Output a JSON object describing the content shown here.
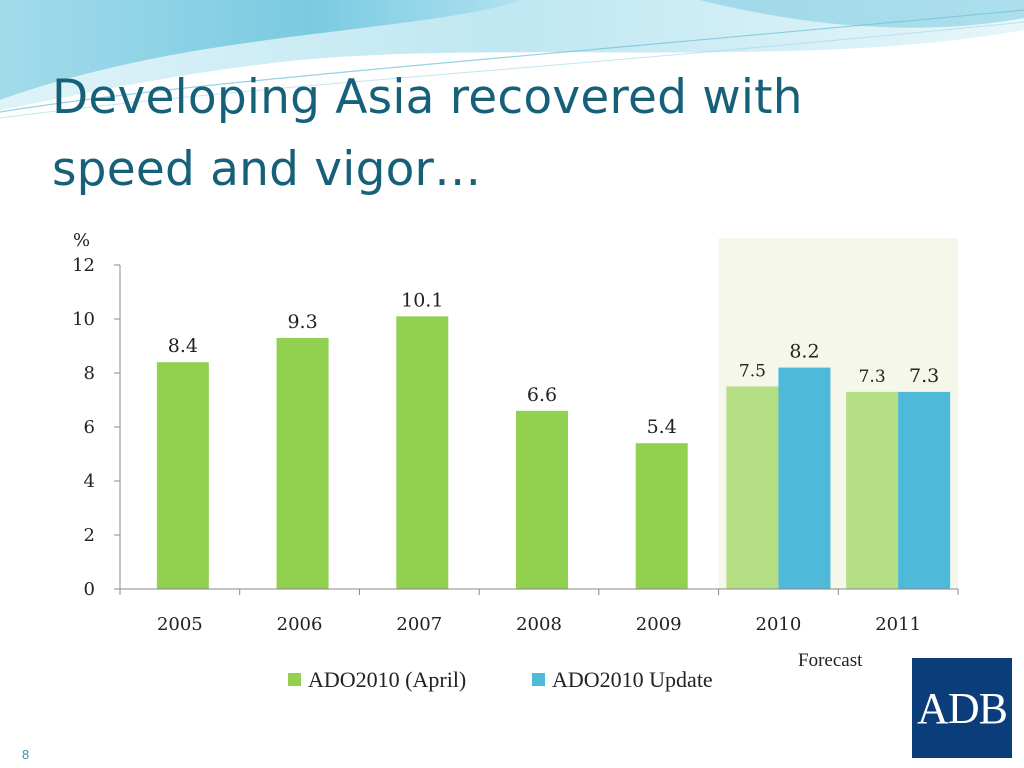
{
  "slide": {
    "title": "Developing Asia recovered with speed and vigor…",
    "number": "8",
    "logo_text": "ADB"
  },
  "colors": {
    "title": "#17607a",
    "ado_april": "#92d050",
    "ado_april_forecast": "#b3de83",
    "ado_update": "#4fb9d9",
    "forecast_shade": "#f4f7ea",
    "logo_bg": "#0b3d7a"
  },
  "chart_data": {
    "type": "bar",
    "ylabel": "%",
    "ylim": [
      0,
      12
    ],
    "yticks": [
      0,
      2,
      4,
      6,
      8,
      10,
      12
    ],
    "categories": [
      "2005",
      "2006",
      "2007",
      "2008",
      "2009",
      "2010",
      "2011"
    ],
    "series": [
      {
        "name": "ADO2010 (April)",
        "values": [
          8.4,
          9.3,
          10.1,
          6.6,
          5.4,
          7.5,
          7.3
        ]
      },
      {
        "name": "ADO2010 Update",
        "values": [
          null,
          null,
          null,
          null,
          null,
          8.2,
          7.3
        ]
      }
    ],
    "forecast_categories": [
      "2010",
      "2011"
    ],
    "annotation": "Forecast",
    "legend_position": "bottom",
    "grid": false
  }
}
